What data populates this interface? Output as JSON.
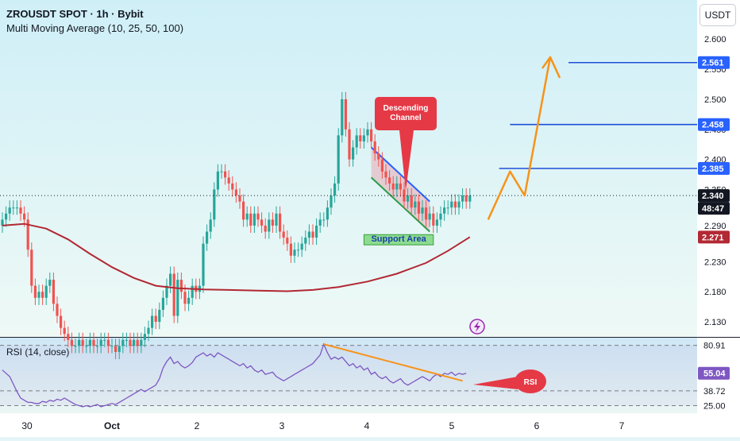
{
  "header": {
    "title": "ZROUSDT SPOT · 1h · Bybit",
    "indicator": "Multi Moving Average (10, 25, 50, 100)",
    "currency_button": "USDT"
  },
  "colors": {
    "background_top": "#d2f0f7",
    "background_bottom": "#ecf8f6",
    "up_candle": "#26a69a",
    "down_candle": "#ef5350",
    "moving_average": "#b22833",
    "level_line": "#1d4ed8",
    "projection": "#f7931a",
    "support_fill": "#6dd36d",
    "channel_upper": "#2962ff",
    "channel_lower": "#2a9d4a",
    "annotation": "#e53946",
    "rsi_line": "#7e57c2"
  },
  "annotations": {
    "descending_channel": "Descending\nChannel",
    "support_area": "Support Area",
    "rsi_callout": "RSI",
    "lightning_icon": "lightning-icon"
  },
  "chart_data": [
    {
      "type": "candlestick",
      "symbol": "ZROUSDT",
      "interval": "1h",
      "ylim": [
        2.105,
        2.665
      ],
      "y_ticks": [
        "2.130",
        "2.180",
        "2.230",
        "2.290",
        "2.350",
        "2.400",
        "2.450",
        "2.500",
        "2.550",
        "2.600"
      ],
      "x_ticks": [
        "30",
        "Oct",
        "2",
        "3",
        "4",
        "5",
        "6",
        "7"
      ],
      "price_labels": [
        {
          "value": "2.561",
          "kind": "level"
        },
        {
          "value": "2.458",
          "kind": "level"
        },
        {
          "value": "2.385",
          "kind": "level"
        },
        {
          "value": "2.340",
          "kind": "last"
        },
        {
          "value": "48:47",
          "kind": "countdown"
        },
        {
          "value": "2.271",
          "kind": "ma"
        }
      ],
      "levels": [
        2.561,
        2.458,
        2.385
      ],
      "last_price": 2.34,
      "ma_value": 2.271,
      "closes": [
        2.3,
        2.31,
        2.32,
        2.32,
        2.32,
        2.31,
        2.3,
        2.25,
        2.19,
        2.17,
        2.18,
        2.17,
        2.19,
        2.2,
        2.16,
        2.14,
        2.12,
        2.11,
        2.1,
        2.09,
        2.09,
        2.1,
        2.09,
        2.09,
        2.1,
        2.09,
        2.09,
        2.1,
        2.1,
        2.09,
        2.09,
        2.08,
        2.09,
        2.1,
        2.1,
        2.09,
        2.1,
        2.09,
        2.1,
        2.11,
        2.12,
        2.14,
        2.13,
        2.15,
        2.17,
        2.19,
        2.21,
        2.14,
        2.2,
        2.18,
        2.16,
        2.17,
        2.19,
        2.18,
        2.19,
        2.26,
        2.28,
        2.3,
        2.35,
        2.38,
        2.38,
        2.37,
        2.36,
        2.35,
        2.34,
        2.33,
        2.3,
        2.31,
        2.29,
        2.31,
        2.3,
        2.29,
        2.28,
        2.3,
        2.29,
        2.31,
        2.28,
        2.27,
        2.26,
        2.24,
        2.25,
        2.25,
        2.26,
        2.27,
        2.28,
        2.27,
        2.29,
        2.3,
        2.3,
        2.32,
        2.34,
        2.36,
        2.44,
        2.5,
        2.45,
        2.4,
        2.42,
        2.44,
        2.43,
        2.44,
        2.45,
        2.43,
        2.41,
        2.4,
        2.38,
        2.37,
        2.36,
        2.35,
        2.36,
        2.35,
        2.33,
        2.34,
        2.32,
        2.33,
        2.31,
        2.32,
        2.3,
        2.31,
        2.29,
        2.3,
        2.31,
        2.32,
        2.32,
        2.33,
        2.32,
        2.33,
        2.34,
        2.33,
        2.34
      ],
      "moving_average": {
        "name": "",
        "x": [
          0,
          6,
          12,
          18,
          24,
          30,
          36,
          42,
          48,
          55,
          62,
          70,
          78,
          85,
          92,
          100,
          108,
          116,
          122,
          128
        ],
        "values": [
          2.29,
          2.293,
          2.285,
          2.267,
          2.243,
          2.221,
          2.203,
          2.19,
          2.186,
          2.184,
          2.183,
          2.182,
          2.181,
          2.183,
          2.188,
          2.197,
          2.21,
          2.228,
          2.248,
          2.271
        ]
      },
      "projection": {
        "x": [
          133,
          139,
          143,
          150,
          152
        ],
        "values": [
          2.3,
          2.38,
          2.34,
          2.57,
          2.54
        ]
      },
      "descending_channel": {
        "upper": {
          "x": [
            101,
            117
          ],
          "values": [
            2.42,
            2.33
          ]
        },
        "lower": {
          "x": [
            101,
            117
          ],
          "values": [
            2.37,
            2.28
          ]
        }
      },
      "support_area": {
        "x": [
          99,
          118
        ],
        "values": [
          2.258,
          2.275
        ]
      }
    },
    {
      "type": "line",
      "title": "RSI (14, close)",
      "ylim": [
        18,
        88
      ],
      "y_ticks": [
        "25.00",
        "38.72",
        "55.04",
        "80.91"
      ],
      "current_value": "55.04",
      "guides": [
        25.0,
        38.72,
        55.04,
        80.91
      ],
      "values": [
        58,
        55,
        52,
        45,
        38,
        32,
        30,
        28,
        28,
        27,
        27,
        29,
        28,
        30,
        29,
        31,
        30,
        32,
        30,
        28,
        26,
        25,
        24,
        25,
        24,
        25,
        26,
        24,
        25,
        26,
        27,
        26,
        28,
        30,
        32,
        34,
        36,
        38,
        40,
        38,
        40,
        42,
        44,
        50,
        60,
        66,
        70,
        64,
        66,
        62,
        60,
        62,
        65,
        70,
        72,
        74,
        71,
        73,
        70,
        74,
        72,
        70,
        68,
        66,
        64,
        62,
        64,
        60,
        62,
        58,
        56,
        58,
        54,
        55,
        56,
        52,
        50,
        48,
        50,
        52,
        54,
        56,
        58,
        60,
        62,
        64,
        68,
        72,
        82,
        74,
        68,
        70,
        68,
        70,
        66,
        62,
        64,
        60,
        62,
        58,
        60,
        54,
        56,
        52,
        50,
        52,
        48,
        46,
        48,
        50,
        46,
        44,
        46,
        48,
        50,
        52,
        50,
        48,
        52,
        54,
        52,
        55,
        54,
        56,
        53,
        55,
        54,
        55
      ],
      "divergence_line": {
        "x": [
          88,
          126
        ],
        "values": [
          82,
          48
        ]
      }
    }
  ]
}
